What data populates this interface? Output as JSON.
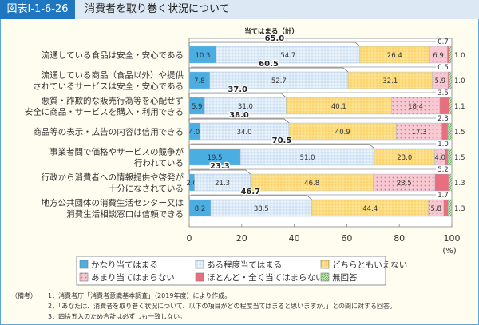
{
  "header": {
    "figure_id": "図表Ⅰ-1-6-26",
    "title": "消費者を取り巻く状況について"
  },
  "chart_data": {
    "type": "bar",
    "orientation": "horizontal",
    "stacked": true,
    "subtotal_label": "当てはまる（計）",
    "categories": [
      [
        "流通している食品は安全・安心である"
      ],
      [
        "流通している商品（食品以外）や提供",
        "されているサービスは安全・安心である"
      ],
      [
        "悪質・詐欺的な販売行為等を心配せず",
        "安全に商品・サービスを購入・利用できる"
      ],
      [
        "商品等の表示・広告の内容は信用できる"
      ],
      [
        "事業者間で価格やサービスの競争が",
        "行われている"
      ],
      [
        "行政から消費者への情報提供や啓発が",
        "十分になされている"
      ],
      [
        "地方公共団体の消費生活センター又は",
        "消費生活相談窓口は信頼できる"
      ]
    ],
    "series": [
      {
        "name": "かなり当てはまる",
        "color": "#4aaee3",
        "values": [
          10.3,
          7.8,
          5.9,
          4.0,
          19.5,
          2.0,
          8.2
        ]
      },
      {
        "name": "ある程度当てはまる",
        "color": "#dceaf8",
        "values": [
          54.7,
          52.7,
          31.0,
          34.0,
          51.0,
          21.3,
          38.5
        ]
      },
      {
        "name": "どちらともいえない",
        "color": "#fbd56b",
        "values": [
          26.4,
          32.1,
          40.1,
          40.9,
          23.0,
          46.8,
          44.4
        ]
      },
      {
        "name": "あまり当てはまらない",
        "color": "#f8c9d2",
        "values": [
          6.9,
          5.9,
          18.4,
          17.3,
          4.0,
          23.5,
          5.8
        ]
      },
      {
        "name": "ほとんど・全く当てはまらない",
        "color": "#e8707e",
        "values": [
          0.7,
          0.5,
          3.5,
          2.3,
          1.0,
          5.2,
          1.7
        ]
      },
      {
        "name": "無回答",
        "color": "#8cc67a",
        "values": [
          1.0,
          1.0,
          1.1,
          1.5,
          1.5,
          1.3,
          1.3
        ]
      }
    ],
    "subtotals": [
      "65.0",
      "60.5",
      "37.0",
      "38.0",
      "70.5",
      "23.3",
      "46.7"
    ],
    "value_labels": [
      [
        "10.3",
        "54.7",
        "26.4",
        "6.9",
        "0.7",
        "1.0"
      ],
      [
        "7.8",
        "52.7",
        "32.1",
        "5.9",
        "0.5",
        "1.0"
      ],
      [
        "5.9",
        "31.0",
        "40.1",
        "18.4",
        "3.5",
        "1.1"
      ],
      [
        "4.0",
        "34.0",
        "40.9",
        "17.3",
        "2.3",
        "1.5"
      ],
      [
        "19.5",
        "51.0",
        "23.0",
        "4.0",
        "1.0",
        "1.5"
      ],
      [
        "2.0",
        "21.3",
        "46.8",
        "23.5",
        "5.2",
        "1.3"
      ],
      [
        "8.2",
        "38.5",
        "44.4",
        "5.8",
        "1.7",
        "1.3"
      ]
    ],
    "xlim": [
      0,
      100
    ],
    "xticks": [
      "0",
      "20",
      "40",
      "60",
      "80",
      "100"
    ],
    "xunit": "(%)",
    "grid": false,
    "legend_position": "bottom"
  },
  "notes": {
    "label": "（備考）",
    "items": [
      "1．消費者庁「消費者意識基本調査」（2019年度）により作成。",
      "2．「あなたは、消費者を取り巻く状況について、以下の項目がどの程度当てはまると思いますか。」との問に対する回答。",
      "3．四捨五入のため合計は必ずしも一致しない。"
    ]
  }
}
